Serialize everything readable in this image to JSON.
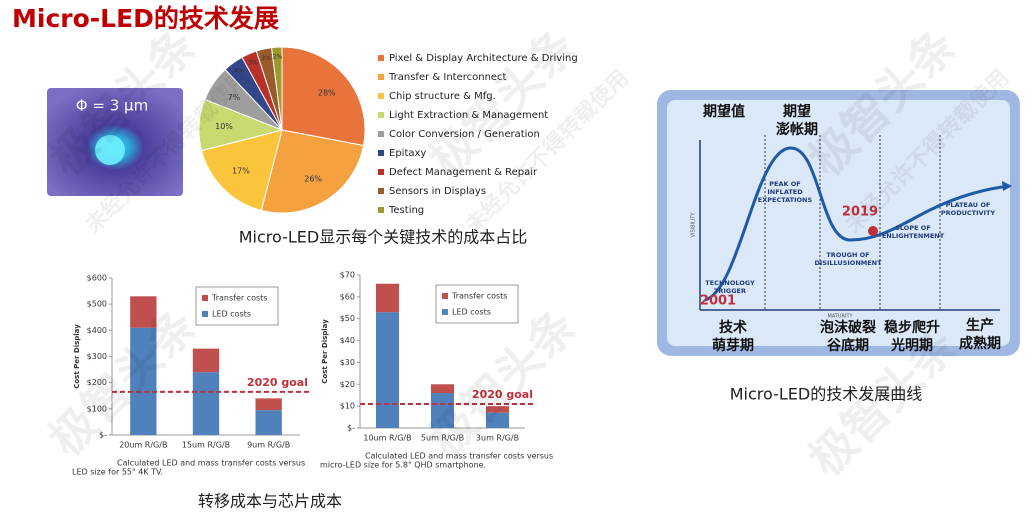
{
  "title": "Micro-LED的技术发展",
  "watermark": [
    "极智头条",
    "未经允许不得转载使用"
  ],
  "photo_label": "Φ = 3 μm",
  "captions": {
    "pie": "Micro-LED显示每个关键技术的成本占比",
    "bars": "转移成本与芯片成本",
    "hype": "Micro-LED的技术发展曲线"
  },
  "hype_cycle": {
    "y_label": "期望值",
    "peak_cn": [
      "期望",
      "澎帐期"
    ],
    "axis_y": "VISIBILITY",
    "axis_x": "MATURITY",
    "peak": [
      "PEAK OF",
      "INFLATED",
      "EXPECTATIONS"
    ],
    "trigger": [
      "TECHNOLOGY",
      "TRIGGER"
    ],
    "trough": [
      "TROUGH OF",
      "DISILLUSIONMENT"
    ],
    "slope": [
      "SLOPE OF",
      "ENLIGHTENMENT"
    ],
    "plateau": [
      "PLATEAU OF",
      "PRODUCTIVITY"
    ],
    "year_start": "2001",
    "year_now": "2019",
    "phases": [
      [
        "技术",
        "萌芽期"
      ],
      [
        "泡沫破裂",
        "谷底期"
      ],
      [
        "稳步爬升",
        "光明期"
      ],
      [
        "生产",
        "成熟期"
      ]
    ]
  },
  "chart_data": [
    {
      "type": "pie",
      "categories": [
        "Pixel & Display Architecture & Driving",
        "Transfer & Interconnect",
        "Chip structure & Mfg.",
        "Light Extraction & Management",
        "Color Conversion / Generation",
        "Epitaxy",
        "Defect Management & Repair",
        "Sensors in Displays",
        "Testing"
      ],
      "values": [
        28,
        26,
        17,
        10,
        7,
        4,
        3,
        3,
        2
      ],
      "value_labels": [
        "28%",
        "26%",
        "17%",
        "10%",
        "7%",
        "4%",
        "3%",
        "3%",
        "2%"
      ],
      "colors": [
        "#e8743b",
        "#f4a240",
        "#fbc43d",
        "#c9d96f",
        "#9e9e9e",
        "#34478a",
        "#b83227",
        "#9b5a2c",
        "#9c9a2a"
      ],
      "legend": "right"
    },
    {
      "type": "bar",
      "stacked": true,
      "y_label": "Cost Per Display",
      "categories": [
        "20um R/G/B",
        "15um R/G/B",
        "9um R/G/B"
      ],
      "series": [
        {
          "name": "LED costs",
          "color": "#4f81bd",
          "values": [
            410,
            240,
            95
          ]
        },
        {
          "name": "Transfer costs",
          "color": "#c0504d",
          "values": [
            120,
            90,
            45
          ]
        }
      ],
      "ylim": [
        0,
        600
      ],
      "yticks": [
        {
          "value": 0,
          "label": "$-"
        },
        {
          "value": 100,
          "label": "$100"
        },
        {
          "value": 200,
          "label": "$200"
        },
        {
          "value": 300,
          "label": "$300"
        },
        {
          "value": 400,
          "label": "$400"
        },
        {
          "value": 500,
          "label": "$500"
        },
        {
          "value": 600,
          "label": "$600"
        }
      ],
      "goal": {
        "value": 165,
        "label": "2020 goal"
      },
      "caption": [
        "Calculated LED and mass transfer costs versus",
        "LED size for 55\" 4K TV."
      ]
    },
    {
      "type": "bar",
      "stacked": true,
      "y_label": "Cost Per Display",
      "categories": [
        "10um R/G/B",
        "5um R/G/B",
        "3um R/G/B"
      ],
      "series": [
        {
          "name": "LED costs",
          "color": "#4f81bd",
          "values": [
            53,
            16,
            7
          ]
        },
        {
          "name": "Transfer costs",
          "color": "#c0504d",
          "values": [
            13,
            4,
            3
          ]
        }
      ],
      "ylim": [
        0,
        70
      ],
      "yticks": [
        {
          "value": 0,
          "label": "$-"
        },
        {
          "value": 10,
          "label": "$10"
        },
        {
          "value": 20,
          "label": "$20"
        },
        {
          "value": 30,
          "label": "$30"
        },
        {
          "value": 40,
          "label": "$40"
        },
        {
          "value": 50,
          "label": "$50"
        },
        {
          "value": 60,
          "label": "$60"
        },
        {
          "value": 70,
          "label": "$70"
        }
      ],
      "goal": {
        "value": 11,
        "label": "2020 goal"
      },
      "caption": [
        "Calculated LED and mass transfer costs versus",
        "micro-LED size for 5.8\" QHD smartphone."
      ]
    }
  ]
}
